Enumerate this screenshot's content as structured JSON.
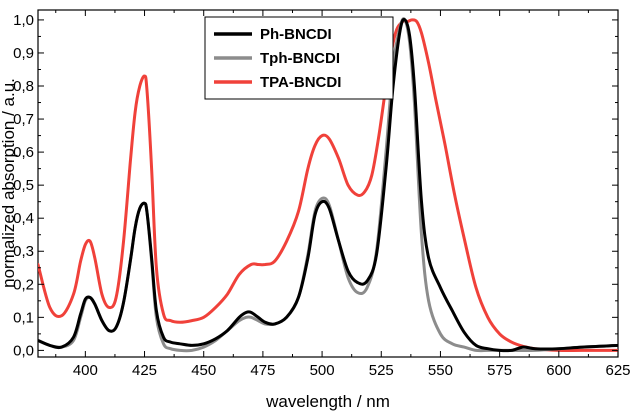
{
  "chart_data": {
    "type": "line",
    "xlabel": "wavelength / nm",
    "ylabel": "normalized absorption / a.u.",
    "xlim": [
      380,
      625
    ],
    "ylim": [
      -0.02,
      1.03
    ],
    "grid": false,
    "legend_placement": "top-center",
    "x_ticks": [
      400,
      425,
      450,
      475,
      500,
      525,
      550,
      575,
      600,
      625
    ],
    "x_tick_labels": [
      "400",
      "425",
      "450",
      "475",
      "500",
      "525",
      "550",
      "575",
      "600",
      "625"
    ],
    "y_ticks": [
      0.0,
      0.1,
      0.2,
      0.3,
      0.4,
      0.5,
      0.6,
      0.7,
      0.8,
      0.9,
      1.0
    ],
    "y_tick_labels": [
      "0,0",
      "0,1",
      "0,2",
      "0,3",
      "0,4",
      "0,5",
      "0,6",
      "0,7",
      "0,8",
      "0,9",
      "1,0"
    ],
    "series": [
      {
        "name": "Ph-BNCDI",
        "color": "#000000",
        "x": [
          380,
          385,
          390,
          395,
          398,
          400,
          402,
          404,
          407,
          410,
          413,
          416,
          419,
          421,
          423,
          425,
          426,
          428,
          430,
          433,
          436,
          440,
          445,
          450,
          455,
          460,
          465,
          468,
          470,
          473,
          476,
          480,
          485,
          490,
          494,
          497,
          500,
          503,
          507,
          511,
          515,
          519,
          523,
          527,
          530,
          533,
          535,
          537,
          539,
          542,
          545,
          550,
          555,
          560,
          565,
          570,
          575,
          580,
          585,
          590,
          600,
          610,
          625
        ],
        "y": [
          0.03,
          0.015,
          0.01,
          0.04,
          0.11,
          0.155,
          0.16,
          0.14,
          0.09,
          0.06,
          0.07,
          0.14,
          0.27,
          0.37,
          0.43,
          0.445,
          0.42,
          0.28,
          0.12,
          0.04,
          0.025,
          0.02,
          0.015,
          0.02,
          0.035,
          0.06,
          0.1,
          0.115,
          0.115,
          0.1,
          0.085,
          0.08,
          0.1,
          0.16,
          0.28,
          0.41,
          0.45,
          0.43,
          0.33,
          0.24,
          0.205,
          0.21,
          0.29,
          0.55,
          0.8,
          0.97,
          1.0,
          0.95,
          0.8,
          0.45,
          0.28,
          0.19,
          0.12,
          0.055,
          0.015,
          0.005,
          0.0,
          0.0,
          0.01,
          0.005,
          0.005,
          0.01,
          0.015
        ]
      },
      {
        "name": "Tph-BNCDI",
        "color": "#8c8c8c",
        "x": [
          380,
          385,
          390,
          395,
          398,
          400,
          402,
          404,
          407,
          410,
          413,
          416,
          419,
          421,
          423,
          425,
          426,
          428,
          430,
          433,
          436,
          440,
          445,
          450,
          455,
          460,
          465,
          468,
          470,
          473,
          476,
          480,
          485,
          490,
          494,
          497,
          500,
          503,
          507,
          511,
          515,
          519,
          523,
          527,
          530,
          533,
          535,
          537,
          539,
          542,
          545,
          550,
          555,
          560,
          565,
          570,
          575,
          580,
          590,
          600,
          610,
          625
        ],
        "y": [
          0.03,
          0.015,
          0.01,
          0.03,
          0.1,
          0.15,
          0.16,
          0.14,
          0.09,
          0.06,
          0.07,
          0.14,
          0.27,
          0.37,
          0.43,
          0.445,
          0.42,
          0.27,
          0.1,
          0.02,
          0.005,
          0.0,
          0.0,
          0.01,
          0.03,
          0.06,
          0.09,
          0.1,
          0.1,
          0.09,
          0.08,
          0.08,
          0.1,
          0.16,
          0.29,
          0.42,
          0.46,
          0.44,
          0.33,
          0.22,
          0.175,
          0.19,
          0.3,
          0.6,
          0.86,
          0.98,
          1.0,
          0.93,
          0.75,
          0.35,
          0.15,
          0.05,
          0.02,
          0.01,
          0.0,
          0.0,
          0.0,
          0.0,
          0.0,
          0.005,
          0.01,
          0.015
        ]
      },
      {
        "name": "TPA-BNCDI",
        "color": "#f0413a",
        "x": [
          380,
          385,
          390,
          395,
          398,
          400,
          402,
          404,
          407,
          410,
          413,
          416,
          419,
          421,
          423,
          425,
          426,
          428,
          430,
          433,
          436,
          440,
          445,
          450,
          455,
          460,
          465,
          470,
          473,
          476,
          480,
          485,
          490,
          494,
          497,
          500,
          503,
          507,
          511,
          515,
          518,
          521,
          524,
          528,
          531,
          534,
          536,
          538,
          540,
          542,
          545,
          548,
          552,
          556,
          560,
          565,
          570,
          575,
          580,
          585,
          590,
          600,
          610,
          625
        ],
        "y": [
          0.26,
          0.13,
          0.105,
          0.17,
          0.27,
          0.32,
          0.33,
          0.28,
          0.17,
          0.13,
          0.16,
          0.32,
          0.57,
          0.72,
          0.8,
          0.83,
          0.79,
          0.55,
          0.25,
          0.11,
          0.09,
          0.085,
          0.09,
          0.1,
          0.13,
          0.17,
          0.23,
          0.26,
          0.26,
          0.26,
          0.27,
          0.33,
          0.42,
          0.55,
          0.62,
          0.65,
          0.64,
          0.58,
          0.5,
          0.47,
          0.48,
          0.53,
          0.65,
          0.85,
          0.96,
          0.995,
          0.995,
          1.0,
          0.995,
          0.96,
          0.87,
          0.76,
          0.62,
          0.47,
          0.34,
          0.19,
          0.1,
          0.05,
          0.025,
          0.012,
          0.005,
          0.0,
          0.0,
          0.0
        ]
      }
    ]
  }
}
